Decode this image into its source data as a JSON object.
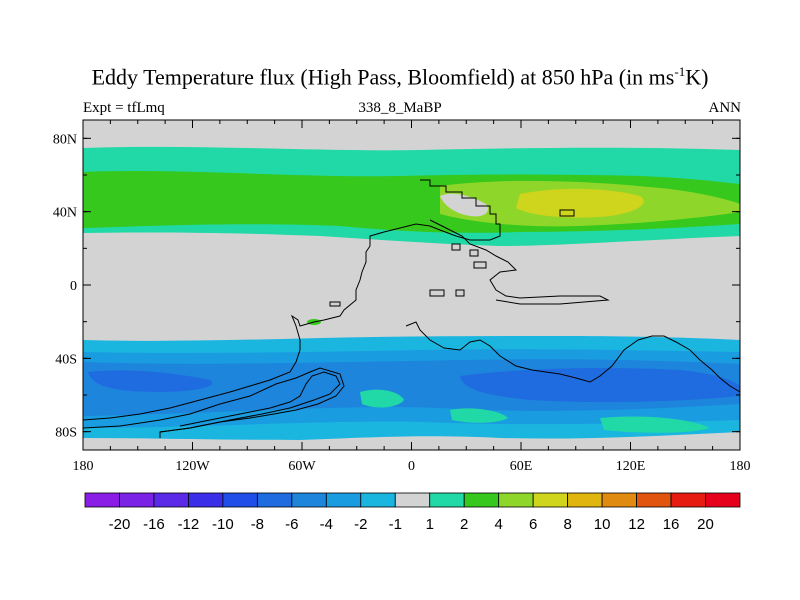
{
  "chart_data": {
    "type": "heatmap",
    "title_main": "Eddy Temperature flux (High Pass, Bloomfield) at 850 hPa (in ms",
    "title_sup": "-1",
    "title_end": "K)",
    "left_subtitle": "Expt = tfLmq",
    "center_subtitle": "338_8_MaBP",
    "right_subtitle": "ANN",
    "x_ticks": [
      "180",
      "120W",
      "60W",
      "0",
      "60E",
      "120E",
      "180"
    ],
    "y_ticks": [
      "80N",
      "40N",
      "0",
      "40S",
      "80S"
    ],
    "xlim": [
      -180,
      180
    ],
    "ylim": [
      -90,
      90
    ],
    "colorbar": {
      "levels": [
        "-20",
        "-16",
        "-12",
        "-10",
        "-8",
        "-6",
        "-4",
        "-2",
        "-1",
        "1",
        "2",
        "4",
        "6",
        "8",
        "10",
        "12",
        "16",
        "20"
      ],
      "colors": [
        "#8a1de6",
        "#7a22e6",
        "#5b2ae8",
        "#3a2ee8",
        "#1f4ee8",
        "#1f6ce0",
        "#1d85dc",
        "#1a9de0",
        "#1ab6e0",
        "#d3d3d3",
        "#20d9a6",
        "#36c81c",
        "#8fd62a",
        "#cfd41c",
        "#e0b60e",
        "#e08a10",
        "#e0540e",
        "#e61c10",
        "#e6001c"
      ]
    },
    "regions": {
      "background": "#d3d3d3",
      "nh_storm_track": "positive 1 to 8 between 30N and 80N",
      "sh_storm_track": "negative -1 to -6 between 30S and 80S"
    }
  }
}
